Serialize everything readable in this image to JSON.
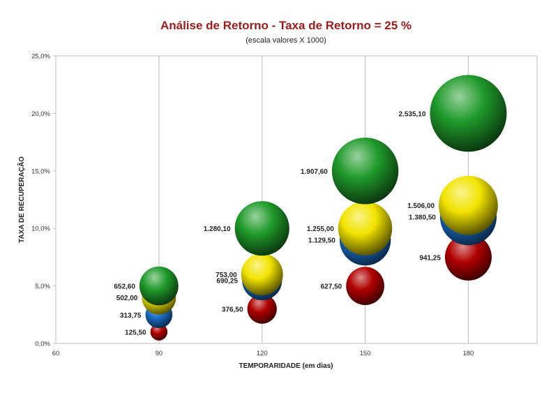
{
  "chart_data": {
    "type": "bubble",
    "title": "Análise de Retorno - Taxa de Retorno = 25 %",
    "subtitle": "(escala valores X 1000)",
    "xlabel": "TEMPORARIDADE (em dias)",
    "ylabel": "TAXA DE RECUPERAÇÃO",
    "xlim": [
      60,
      200
    ],
    "ylim": [
      0,
      25
    ],
    "x_ticks": [
      "60",
      "90",
      "120",
      "150",
      "180"
    ],
    "y_ticks": [
      "0,0%",
      "5,0%",
      "10,0%",
      "15,0%",
      "20,0%",
      "25,0%"
    ],
    "grid": "vertical",
    "title_color": "#9b1b1b",
    "series": [
      {
        "color": "#b00000",
        "points": [
          {
            "x": 90,
            "y": 1.0,
            "size": 125.5,
            "label": "125,50"
          },
          {
            "x": 120,
            "y": 3.0,
            "size": 376.5,
            "label": "376,50"
          },
          {
            "x": 150,
            "y": 5.0,
            "size": 627.5,
            "label": "627,50"
          },
          {
            "x": 180,
            "y": 7.5,
            "size": 941.25,
            "label": "941,25"
          }
        ]
      },
      {
        "color": "#1a6fc7",
        "points": [
          {
            "x": 90,
            "y": 2.5,
            "size": 313.75,
            "label": "313,75"
          },
          {
            "x": 120,
            "y": 5.5,
            "size": 690.25,
            "label": "690,25"
          },
          {
            "x": 150,
            "y": 9.0,
            "size": 1129.5,
            "label": "1.129,50"
          },
          {
            "x": 180,
            "y": 11.0,
            "size": 1380.5,
            "label": "1.380,50"
          }
        ]
      },
      {
        "color": "#f2e400",
        "points": [
          {
            "x": 90,
            "y": 4.0,
            "size": 502.0,
            "label": "502,00"
          },
          {
            "x": 120,
            "y": 6.0,
            "size": 753.0,
            "label": "753,00"
          },
          {
            "x": 150,
            "y": 10.0,
            "size": 1255.0,
            "label": "1.255,00"
          },
          {
            "x": 180,
            "y": 12.0,
            "size": 1506.0,
            "label": "1.506,00"
          }
        ]
      },
      {
        "color": "#1f9a2a",
        "points": [
          {
            "x": 90,
            "y": 5.0,
            "size": 652.6,
            "label": "652,60"
          },
          {
            "x": 120,
            "y": 10.0,
            "size": 1280.1,
            "label": "1.280,10"
          },
          {
            "x": 150,
            "y": 15.0,
            "size": 1907.6,
            "label": "1.907,60"
          },
          {
            "x": 180,
            "y": 20.0,
            "size": 2535.1,
            "label": "2.535,10"
          }
        ]
      }
    ]
  }
}
